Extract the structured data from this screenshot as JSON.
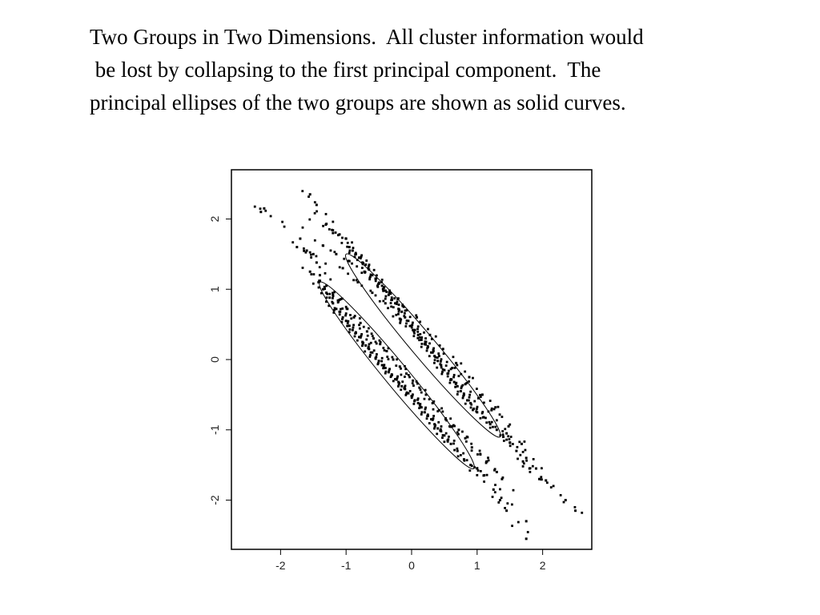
{
  "slide": {
    "lines": [
      "Two Groups in Two Dimensions.  All cluster information would",
      " be lost by collapsing to the first principal component.  The",
      "principal ellipses of the two groups are shown as solid curves."
    ]
  },
  "chart_data": {
    "type": "scatter",
    "title": "",
    "xlabel": "",
    "ylabel": "",
    "xlim": [
      -2.75,
      2.75
    ],
    "ylim": [
      -2.7,
      2.7
    ],
    "xticks": [
      -2,
      -1,
      0,
      1,
      2
    ],
    "yticks": [
      -2,
      -1,
      0,
      1,
      2
    ],
    "xtick_labels": [
      "-2",
      "-1",
      "0",
      "1",
      "2"
    ],
    "ytick_labels": [
      "-2",
      "-1",
      "0",
      "1",
      "2"
    ],
    "ytick_rotation": "vertical",
    "grid": false,
    "legend": "none",
    "marker_color": "#000000",
    "series": [
      {
        "x": [
          -2.3,
          -2.25,
          -1.7,
          -1.55,
          -1.45,
          -1.3,
          -1.2,
          -1.1,
          -1.0,
          -0.95,
          -0.9,
          -0.85,
          -0.8,
          -0.75,
          -0.7,
          -0.65,
          -0.6,
          -0.55,
          -0.5,
          -0.45,
          -0.4,
          -0.35,
          -0.3,
          -0.25,
          -0.2,
          -0.15,
          -0.1,
          -0.05,
          0.0,
          0.05,
          0.1,
          0.15,
          0.2,
          0.25,
          0.3,
          0.35,
          0.4,
          0.45,
          0.5,
          0.55,
          0.6,
          0.65,
          0.7,
          0.75,
          0.8,
          0.85,
          0.9,
          0.95,
          1.0,
          1.1,
          1.2,
          1.3,
          1.4,
          1.5,
          1.6,
          1.7,
          1.8,
          1.95,
          2.05,
          2.35,
          2.5,
          -1.35,
          -1.15,
          -0.95,
          -0.72,
          -0.52,
          -0.33,
          -0.12,
          0.08,
          0.28,
          0.48,
          0.68,
          0.88,
          1.08,
          1.28,
          1.48,
          1.75,
          -1.05,
          -0.82,
          -0.6,
          -0.4,
          -0.18,
          0.02,
          0.22,
          0.42,
          0.62,
          0.82,
          1.02,
          1.22,
          1.45,
          1.68,
          1.9
        ],
        "y": [
          2.1,
          2.15,
          1.72,
          2.35,
          2.2,
          1.93,
          1.8,
          1.78,
          1.72,
          1.6,
          1.55,
          1.5,
          1.45,
          1.38,
          1.35,
          1.28,
          1.2,
          1.15,
          1.08,
          1.05,
          0.98,
          0.92,
          0.85,
          0.8,
          0.72,
          0.68,
          0.6,
          0.55,
          0.48,
          0.42,
          0.35,
          0.28,
          0.22,
          0.18,
          0.1,
          0.05,
          -0.02,
          -0.08,
          -0.15,
          -0.2,
          -0.28,
          -0.32,
          -0.38,
          -0.45,
          -0.5,
          -0.58,
          -0.62,
          -0.7,
          -0.75,
          -0.82,
          -0.92,
          -1.0,
          -1.1,
          -1.18,
          -1.3,
          -1.45,
          -1.55,
          -1.7,
          -1.72,
          -2.0,
          -2.15,
          1.62,
          1.5,
          1.4,
          1.25,
          1.05,
          0.95,
          0.75,
          0.6,
          0.35,
          0.15,
          -0.05,
          -0.25,
          -0.5,
          -0.68,
          -0.95,
          -1.4,
          1.3,
          1.1,
          0.95,
          0.8,
          0.58,
          0.42,
          0.25,
          0.05,
          -0.12,
          -0.35,
          -0.55,
          -0.72,
          -1.05,
          -1.2,
          -1.55
        ]
      },
      {
        "x": [
          -1.75,
          -1.6,
          -1.5,
          -1.45,
          -1.4,
          -1.35,
          -1.3,
          -1.25,
          -1.2,
          -1.15,
          -1.1,
          -1.05,
          -1.0,
          -0.95,
          -0.9,
          -0.85,
          -0.8,
          -0.75,
          -0.7,
          -0.65,
          -0.6,
          -0.55,
          -0.5,
          -0.45,
          -0.4,
          -0.35,
          -0.3,
          -0.25,
          -0.2,
          -0.15,
          -0.1,
          -0.05,
          0.0,
          0.05,
          0.1,
          0.15,
          0.2,
          0.25,
          0.3,
          0.35,
          0.4,
          0.45,
          0.5,
          0.55,
          0.6,
          0.7,
          0.8,
          0.9,
          1.0,
          1.1,
          1.25,
          1.35,
          1.45,
          1.75,
          -1.55,
          -1.3,
          -1.1,
          -0.88,
          -0.68,
          -0.48,
          -0.28,
          -0.08,
          0.12,
          0.32,
          0.52,
          0.72,
          0.92,
          1.15,
          1.38,
          -1.42,
          -1.2,
          -0.98,
          -0.78,
          -0.58,
          -0.38,
          -0.18,
          0.02,
          0.22,
          0.42,
          0.62,
          0.82,
          1.05,
          1.3,
          1.75
        ],
        "y": [
          1.6,
          1.55,
          1.5,
          1.38,
          1.2,
          1.0,
          0.95,
          0.88,
          0.8,
          0.72,
          0.68,
          0.6,
          0.55,
          0.48,
          0.42,
          0.38,
          0.32,
          0.25,
          0.2,
          0.15,
          0.1,
          0.02,
          -0.02,
          -0.08,
          -0.12,
          -0.18,
          -0.22,
          -0.28,
          -0.32,
          -0.38,
          -0.42,
          -0.48,
          -0.52,
          -0.58,
          -0.62,
          -0.68,
          -0.75,
          -0.8,
          -0.85,
          -0.92,
          -0.98,
          -1.02,
          -1.08,
          -1.15,
          -1.2,
          -1.3,
          -1.42,
          -1.5,
          -1.55,
          -1.65,
          -1.85,
          -2.0,
          -2.15,
          -2.55,
          1.25,
          1.05,
          0.85,
          0.6,
          0.4,
          0.22,
          0.0,
          -0.2,
          -0.4,
          -0.62,
          -0.85,
          -1.0,
          -1.25,
          -1.45,
          -1.7,
          1.1,
          0.92,
          0.72,
          0.52,
          0.3,
          0.12,
          -0.1,
          -0.3,
          -0.5,
          -0.72,
          -0.95,
          -1.12,
          -1.35,
          -1.6,
          -2.3
        ]
      }
    ],
    "ellipses": [
      {
        "center": [
          0.18,
          0.18
        ],
        "major_axis_points": [
          [
            -1.0,
            1.5
          ],
          [
            1.35,
            -1.1
          ]
        ],
        "minor_half_width": 0.18
      },
      {
        "center": [
          -0.22,
          -0.22
        ],
        "major_axis_points": [
          [
            -1.4,
            1.1
          ],
          [
            0.95,
            -1.55
          ]
        ],
        "minor_half_width": 0.18
      }
    ]
  }
}
